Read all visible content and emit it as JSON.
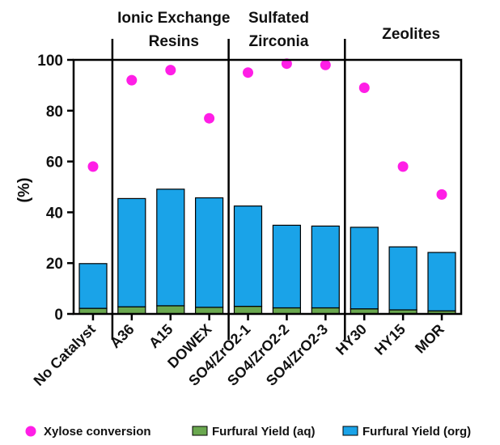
{
  "chart_data": {
    "type": "bar",
    "ylabel": "(%)",
    "ylim": [
      0,
      100
    ],
    "yticks": [
      "0",
      "20",
      "40",
      "60",
      "80",
      "100"
    ],
    "categories": [
      "No Catalyst",
      "A36",
      "A15",
      "DOWEX",
      "SO4/ZrO2-1",
      "SO4/ZrO2-2",
      "SO4/ZrO2-3",
      "HY30",
      "HY15",
      "MOR"
    ],
    "groups": [
      {
        "label_lines": [
          "Ionic Exchange",
          "Resins"
        ]
      },
      {
        "label_lines": [
          "Sulfated",
          "Zirconia"
        ]
      },
      {
        "label_lines": [
          "Zeolites"
        ]
      }
    ],
    "series": [
      {
        "name": "Furfural Yield (aq)",
        "kind": "stacked-bar",
        "color": "#6aa84f",
        "values": [
          2.2,
          2.8,
          3.2,
          2.6,
          3.0,
          2.4,
          2.4,
          2.0,
          1.6,
          1.2
        ]
      },
      {
        "name": "Furfural Yield (org)",
        "kind": "stacked-bar",
        "color": "#1aa3e8",
        "values": [
          17.6,
          42.6,
          45.9,
          43.1,
          39.5,
          32.5,
          32.2,
          32.1,
          24.8,
          23.0
        ]
      },
      {
        "name": "Xylose conversion",
        "kind": "scatter",
        "color": "#ff1ee6",
        "values": [
          58,
          92,
          96,
          77,
          95,
          98.5,
          98,
          89,
          58,
          47
        ]
      }
    ],
    "legend": {
      "position": "bottom",
      "items": [
        {
          "label": "Xylose conversion",
          "color": "#ff1ee6",
          "marker": "circle"
        },
        {
          "label": "Furfural Yield (aq)",
          "color": "#6aa84f",
          "marker": "square"
        },
        {
          "label": "Furfural Yield (org)",
          "color": "#1aa3e8",
          "marker": "square"
        }
      ]
    },
    "grid": false
  }
}
